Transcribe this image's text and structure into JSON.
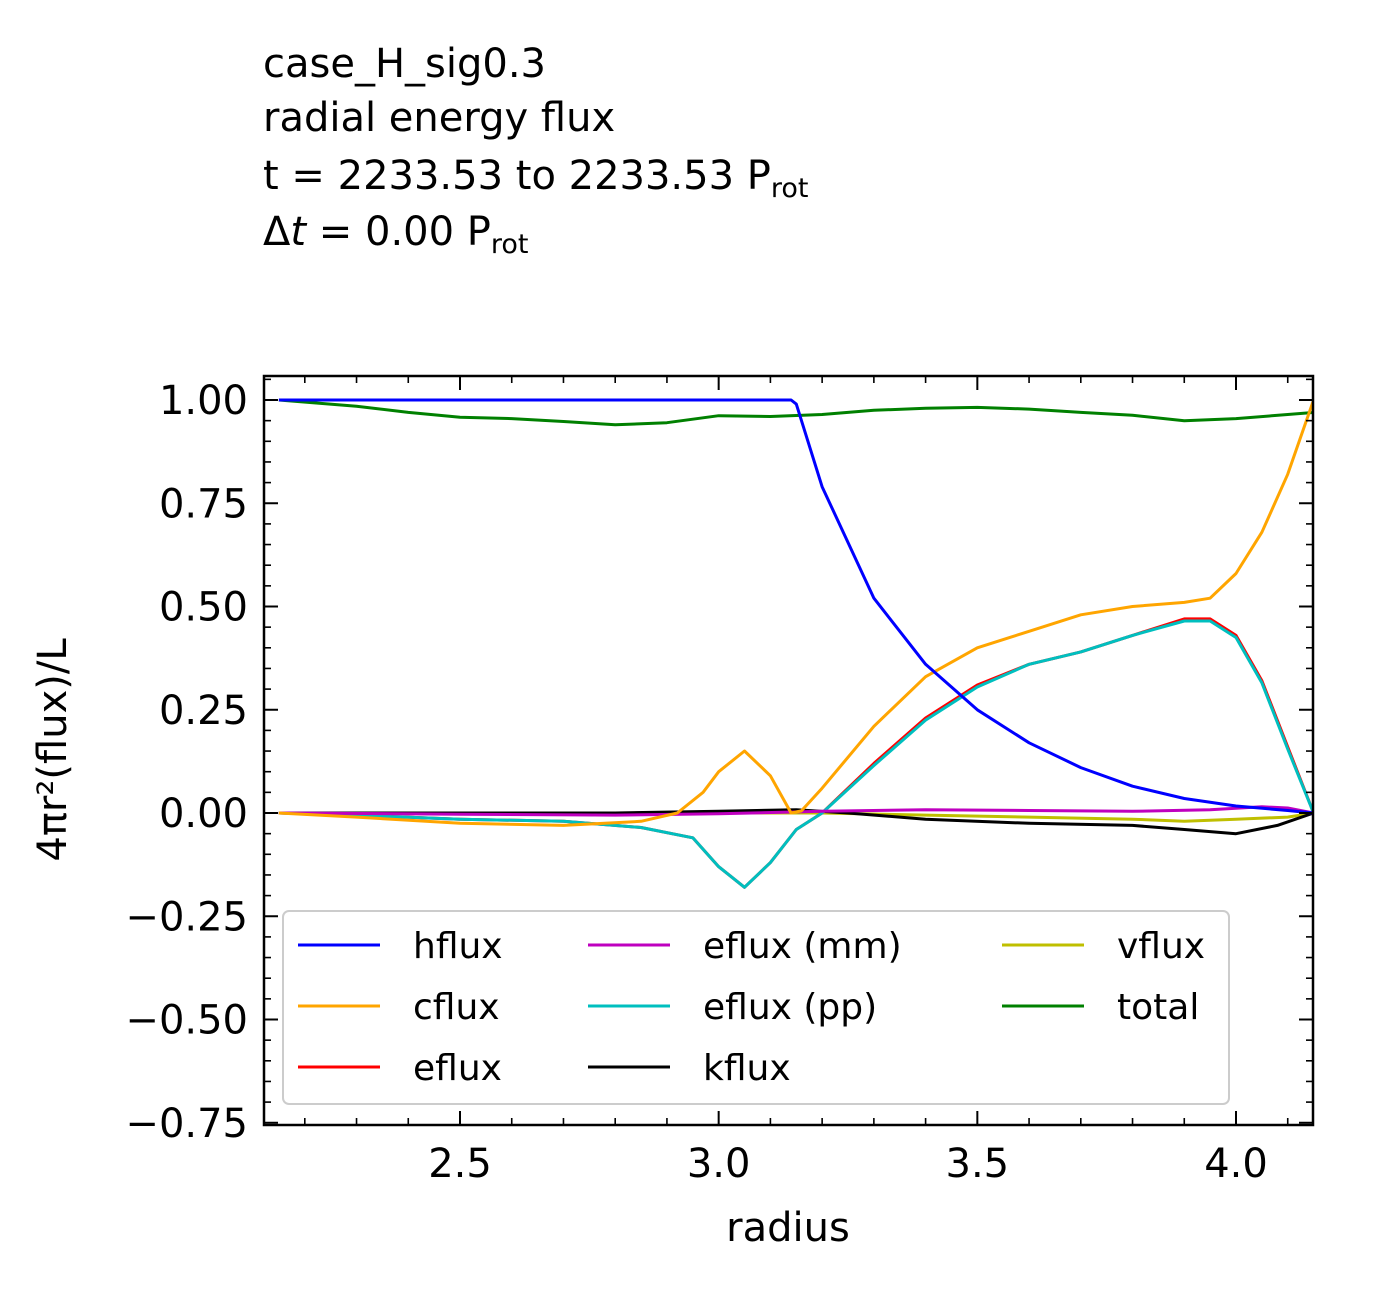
{
  "title": {
    "line1": "case_H_sig0.3",
    "line2": "radial energy flux",
    "line3_prefix": "t = 2233.53 to 2233.53 P",
    "line3_sub": "rot",
    "line4_delta": "Δ",
    "line4_t": "t",
    "line4_rest": " = 0.00 P",
    "line4_sub": "rot"
  },
  "chart_data": {
    "type": "line",
    "xlabel": "radius",
    "ylabel": "4πr²(flux)/L",
    "xlim": [
      2.15,
      4.15
    ],
    "ylim": [
      -0.75,
      1.06
    ],
    "xticks": [
      2.5,
      3.0,
      3.5,
      4.0
    ],
    "xtick_labels": [
      "2.5",
      "3.0",
      "3.5",
      "4.0"
    ],
    "yticks": [
      -0.75,
      -0.5,
      -0.25,
      0.0,
      0.25,
      0.5,
      0.75,
      1.0
    ],
    "ytick_labels": [
      "−0.75",
      "−0.50",
      "−0.25",
      "0.00",
      "0.25",
      "0.50",
      "0.75",
      "1.00"
    ],
    "grid": false,
    "legend": {
      "placement": "lower center",
      "columns": 3
    },
    "series": [
      {
        "name": "hflux",
        "color": "#0000ff",
        "x": [
          2.15,
          3.0,
          3.14,
          3.15,
          3.2,
          3.3,
          3.4,
          3.5,
          3.6,
          3.7,
          3.8,
          3.9,
          4.0,
          4.1,
          4.15
        ],
        "y": [
          1.0,
          1.0,
          1.0,
          0.99,
          0.79,
          0.52,
          0.36,
          0.25,
          0.17,
          0.11,
          0.065,
          0.035,
          0.017,
          0.006,
          0.0
        ]
      },
      {
        "name": "cflux",
        "color": "#ffa500",
        "x": [
          2.15,
          2.3,
          2.5,
          2.7,
          2.85,
          2.92,
          2.97,
          3.0,
          3.05,
          3.1,
          3.14,
          3.16,
          3.2,
          3.3,
          3.4,
          3.5,
          3.6,
          3.7,
          3.8,
          3.9,
          3.95,
          4.0,
          4.05,
          4.1,
          4.15
        ],
        "y": [
          0.0,
          -0.01,
          -0.025,
          -0.03,
          -0.02,
          0.0,
          0.05,
          0.1,
          0.15,
          0.09,
          0.0,
          0.005,
          0.06,
          0.21,
          0.33,
          0.4,
          0.44,
          0.48,
          0.5,
          0.51,
          0.52,
          0.58,
          0.68,
          0.82,
          1.0
        ]
      },
      {
        "name": "eflux",
        "color": "#ff0000",
        "x": [
          2.15,
          2.3,
          2.5,
          2.7,
          2.85,
          2.95,
          3.0,
          3.05,
          3.1,
          3.15,
          3.2,
          3.3,
          3.4,
          3.5,
          3.6,
          3.7,
          3.8,
          3.9,
          3.95,
          4.0,
          4.05,
          4.1,
          4.15
        ],
        "y": [
          0.0,
          -0.005,
          -0.015,
          -0.02,
          -0.035,
          -0.06,
          -0.13,
          -0.18,
          -0.12,
          -0.04,
          0.0,
          0.12,
          0.23,
          0.31,
          0.36,
          0.39,
          0.43,
          0.47,
          0.47,
          0.43,
          0.32,
          0.16,
          0.0
        ]
      },
      {
        "name": "eflux (mm)",
        "color": "#bf00bf",
        "x": [
          2.15,
          2.5,
          2.8,
          3.0,
          3.2,
          3.4,
          3.6,
          3.8,
          3.95,
          4.05,
          4.1,
          4.15
        ],
        "y": [
          0.0,
          -0.003,
          -0.005,
          -0.002,
          0.004,
          0.008,
          0.006,
          0.004,
          0.008,
          0.015,
          0.012,
          0.0
        ]
      },
      {
        "name": "eflux (pp)",
        "color": "#00bfbf",
        "x": [
          2.15,
          2.3,
          2.5,
          2.7,
          2.85,
          2.95,
          3.0,
          3.05,
          3.1,
          3.15,
          3.2,
          3.3,
          3.4,
          3.5,
          3.6,
          3.7,
          3.8,
          3.9,
          3.95,
          4.0,
          4.05,
          4.1,
          4.15
        ],
        "y": [
          0.0,
          -0.005,
          -0.015,
          -0.02,
          -0.035,
          -0.06,
          -0.13,
          -0.18,
          -0.12,
          -0.04,
          0.0,
          0.115,
          0.225,
          0.305,
          0.36,
          0.39,
          0.43,
          0.465,
          0.465,
          0.425,
          0.315,
          0.155,
          0.0
        ]
      },
      {
        "name": "kflux",
        "color": "#000000",
        "x": [
          2.15,
          2.5,
          2.8,
          3.0,
          3.15,
          3.25,
          3.4,
          3.6,
          3.8,
          3.9,
          4.0,
          4.08,
          4.15
        ],
        "y": [
          0.0,
          0.0,
          0.0,
          0.004,
          0.008,
          0.0,
          -0.015,
          -0.025,
          -0.03,
          -0.04,
          -0.05,
          -0.03,
          0.0
        ]
      },
      {
        "name": "vflux",
        "color": "#bfbf00",
        "x": [
          2.15,
          2.5,
          2.8,
          3.0,
          3.2,
          3.4,
          3.6,
          3.8,
          3.9,
          4.0,
          4.1,
          4.15
        ],
        "y": [
          0.0,
          0.0,
          0.0,
          0.0,
          0.0,
          -0.005,
          -0.01,
          -0.015,
          -0.02,
          -0.015,
          -0.01,
          0.0
        ]
      },
      {
        "name": "total",
        "color": "#008000",
        "x": [
          2.15,
          2.3,
          2.4,
          2.5,
          2.6,
          2.7,
          2.8,
          2.9,
          3.0,
          3.1,
          3.2,
          3.3,
          3.4,
          3.5,
          3.6,
          3.7,
          3.8,
          3.9,
          4.0,
          4.1,
          4.15
        ],
        "y": [
          1.0,
          0.985,
          0.97,
          0.958,
          0.955,
          0.948,
          0.94,
          0.945,
          0.962,
          0.96,
          0.965,
          0.975,
          0.98,
          0.982,
          0.978,
          0.97,
          0.963,
          0.95,
          0.955,
          0.965,
          0.97
        ]
      }
    ]
  }
}
